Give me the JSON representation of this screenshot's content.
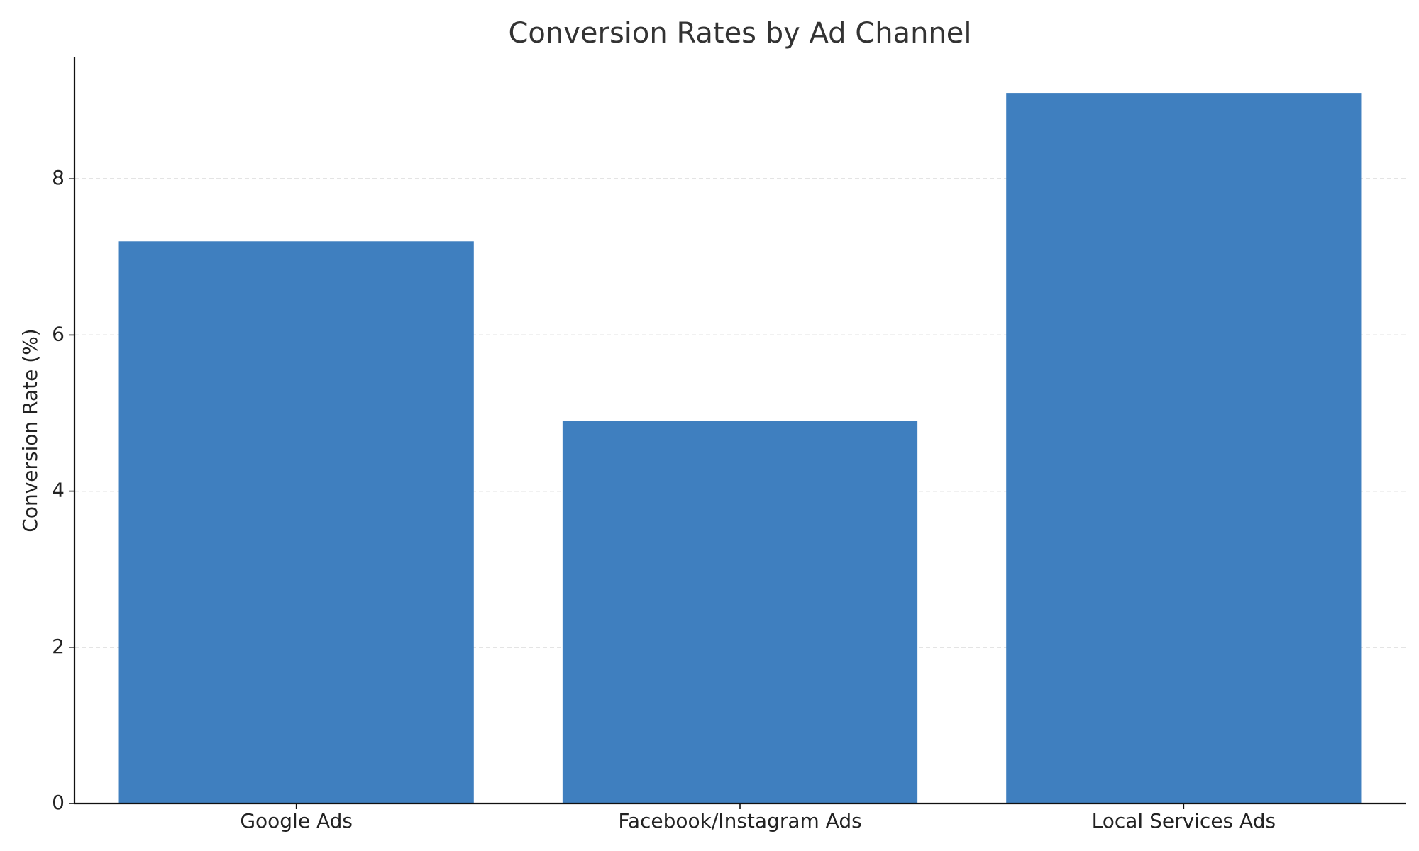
{
  "chart_data": {
    "type": "bar",
    "title": "Conversion Rates by Ad Channel",
    "y_label": "Conversion Rate (%)",
    "categories": [
      "Google Ads",
      "Facebook/Instagram Ads",
      "Local Services Ads"
    ],
    "values": [
      7.2,
      4.9,
      9.1
    ],
    "color": "#3f7fbf",
    "ylim": [
      0,
      9.555
    ],
    "yticks": [
      0,
      2,
      4,
      6,
      8
    ],
    "grid": true
  }
}
